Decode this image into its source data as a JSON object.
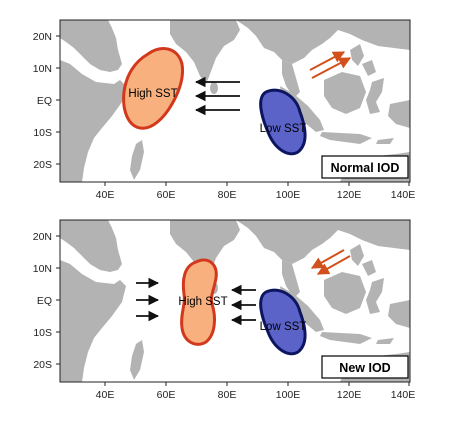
{
  "panels": [
    {
      "title": "Normal IOD",
      "high_sst_label": "High SST",
      "low_sst_label": "Low SST"
    },
    {
      "title": "New IOD",
      "high_sst_label": "High SST",
      "low_sst_label": "Low SST"
    }
  ],
  "axes": {
    "lat_ticks": [
      "20N",
      "10N",
      "EQ",
      "10S",
      "20S"
    ],
    "lon_ticks": [
      "40E",
      "60E",
      "80E",
      "100E",
      "120E",
      "140E"
    ]
  },
  "colors": {
    "land": "#b3b3b3",
    "warm_fill": "#f7b07e",
    "warm_edge": "#d2381c",
    "cool_fill": "#5b63c8",
    "cool_edge": "#0e1560",
    "wind_arrow": "#111111",
    "coastal_arrow": "#d2501c"
  }
}
